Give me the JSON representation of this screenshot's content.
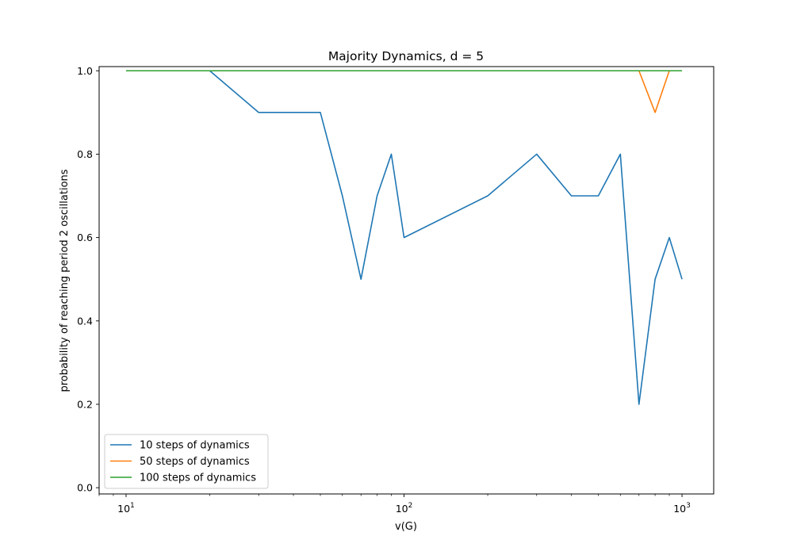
{
  "chart_data": {
    "type": "line",
    "title": "Majority Dynamics, d = 5",
    "xlabel": "v(G)",
    "ylabel": "probability of reaching period 2 oscillations",
    "xscale": "log",
    "xlim": [
      8,
      1300
    ],
    "ylim": [
      -0.015,
      1.01
    ],
    "grid": false,
    "legend_position": "lower-left",
    "x_ticks": [
      {
        "value": 10,
        "base": "10",
        "exp": "1"
      },
      {
        "value": 100,
        "base": "10",
        "exp": "2"
      },
      {
        "value": 1000,
        "base": "10",
        "exp": "3"
      }
    ],
    "y_ticks": [
      {
        "value": 0.0,
        "label": "0.0"
      },
      {
        "value": 0.2,
        "label": "0.2"
      },
      {
        "value": 0.4,
        "label": "0.4"
      },
      {
        "value": 0.6,
        "label": "0.6"
      },
      {
        "value": 0.8,
        "label": "0.8"
      },
      {
        "value": 1.0,
        "label": "1.0"
      }
    ],
    "x": [
      10,
      20,
      30,
      40,
      50,
      60,
      70,
      80,
      90,
      100,
      200,
      300,
      400,
      500,
      600,
      700,
      800,
      900,
      1000
    ],
    "series": [
      {
        "name": "10 steps of dynamics",
        "color": "#1f77b4",
        "values": [
          1.0,
          1.0,
          0.9,
          0.9,
          0.9,
          0.7,
          0.5,
          0.7,
          0.8,
          0.6,
          0.7,
          0.8,
          0.7,
          0.7,
          0.8,
          0.2,
          0.5,
          0.6,
          0.5
        ]
      },
      {
        "name": "50 steps of dynamics",
        "color": "#ff7f0e",
        "values": [
          1.0,
          1.0,
          1.0,
          1.0,
          1.0,
          1.0,
          1.0,
          1.0,
          1.0,
          1.0,
          1.0,
          1.0,
          1.0,
          1.0,
          1.0,
          1.0,
          0.9,
          1.0,
          1.0
        ]
      },
      {
        "name": "100 steps of dynamics",
        "color": "#2ca02c",
        "values": [
          1.0,
          1.0,
          1.0,
          1.0,
          1.0,
          1.0,
          1.0,
          1.0,
          1.0,
          1.0,
          1.0,
          1.0,
          1.0,
          1.0,
          1.0,
          1.0,
          1.0,
          1.0,
          1.0
        ]
      }
    ]
  }
}
